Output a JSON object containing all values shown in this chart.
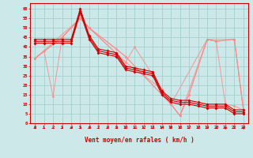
{
  "bg_color": "#cce8e8",
  "grid_color": "#99cccc",
  "line_color_dark": "#cc0000",
  "line_color_light": "#ff8888",
  "xlabel": "Vent moyen/en rafales ( km/h )",
  "ylabel_ticks": [
    0,
    5,
    10,
    15,
    20,
    25,
    30,
    35,
    40,
    45,
    50,
    55,
    60
  ],
  "xlim": [
    -0.5,
    23.5
  ],
  "ylim": [
    0,
    63
  ],
  "series_dark1": {
    "x": [
      0,
      1,
      2,
      3,
      4,
      5,
      6,
      7,
      8,
      9,
      10,
      11,
      12,
      13,
      14,
      15,
      16,
      17,
      18,
      19,
      20,
      21,
      22,
      23
    ],
    "y": [
      44,
      44,
      44,
      44,
      44,
      60,
      46,
      39,
      38,
      37,
      30,
      29,
      28,
      27,
      17,
      13,
      12,
      12,
      11,
      10,
      10,
      10,
      7,
      7
    ]
  },
  "series_dark2": {
    "x": [
      0,
      1,
      2,
      3,
      4,
      5,
      6,
      7,
      8,
      9,
      10,
      11,
      12,
      13,
      14,
      15,
      16,
      17,
      18,
      19,
      20,
      21,
      22,
      23
    ],
    "y": [
      43,
      43,
      43,
      43,
      43,
      59,
      45,
      38,
      37,
      36,
      29,
      28,
      27,
      26,
      16,
      12,
      11,
      11,
      10,
      9,
      9,
      9,
      6,
      6
    ]
  },
  "series_dark3": {
    "x": [
      0,
      1,
      2,
      3,
      4,
      5,
      6,
      7,
      8,
      9,
      10,
      11,
      12,
      13,
      14,
      15,
      16,
      17,
      18,
      19,
      20,
      21,
      22,
      23
    ],
    "y": [
      42,
      42,
      42,
      42,
      42,
      58,
      44,
      37,
      36,
      35,
      28,
      27,
      26,
      25,
      15,
      11,
      10,
      10,
      9,
      8,
      8,
      8,
      5,
      5
    ]
  },
  "series_light1": {
    "x": [
      0,
      3,
      5,
      6,
      9,
      10,
      15,
      16,
      17,
      19,
      20,
      21,
      22,
      23
    ],
    "y": [
      34,
      45,
      55,
      50,
      39,
      35,
      10,
      4,
      15,
      44,
      43,
      10,
      9,
      7
    ]
  },
  "series_light2": {
    "x": [
      0,
      1,
      2,
      3,
      5,
      6,
      10,
      11,
      14,
      15,
      16,
      17,
      19,
      20,
      22,
      23
    ],
    "y": [
      34,
      38,
      14,
      45,
      55,
      50,
      32,
      40,
      18,
      10,
      4,
      15,
      44,
      43,
      44,
      7
    ]
  },
  "series_light3": {
    "x": [
      0,
      3,
      5,
      6,
      10,
      14,
      15,
      16,
      19,
      20,
      22,
      23
    ],
    "y": [
      34,
      45,
      55,
      50,
      32,
      18,
      10,
      4,
      44,
      43,
      44,
      7
    ]
  },
  "series_light4": {
    "x": [
      0,
      1,
      5,
      6,
      10,
      15,
      19,
      22,
      23
    ],
    "y": [
      34,
      38,
      55,
      50,
      35,
      10,
      44,
      44,
      7
    ]
  },
  "arrows_x": [
    0,
    1,
    2,
    3,
    4,
    5,
    6,
    7,
    8,
    9,
    10,
    11,
    12,
    13,
    14,
    15,
    16,
    17,
    18,
    19,
    20,
    21,
    22,
    23
  ],
  "arrows_dir": [
    2,
    2,
    2,
    2,
    2,
    2,
    2,
    2,
    2,
    2,
    2,
    2,
    2,
    2,
    3,
    3,
    4,
    2,
    2,
    2,
    2,
    1,
    2,
    1
  ]
}
